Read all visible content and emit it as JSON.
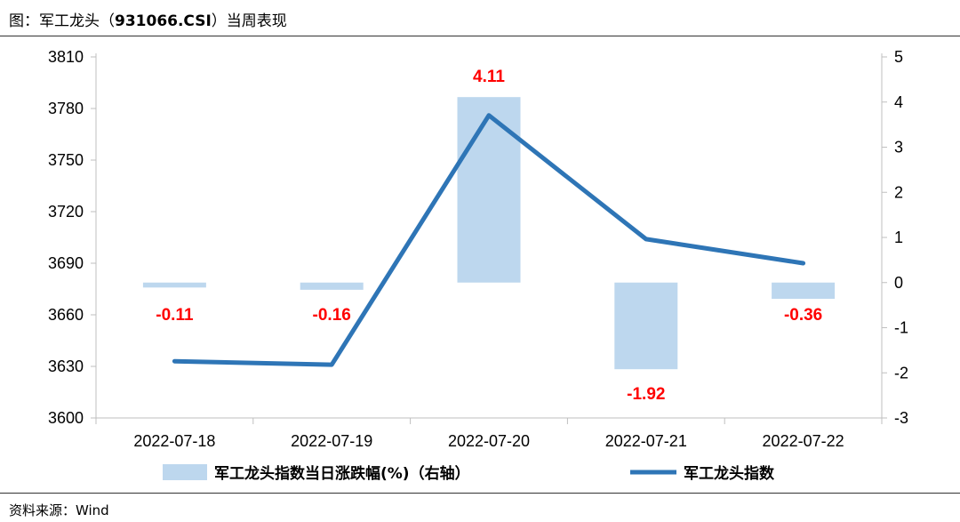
{
  "figure": {
    "title_prefix": "图：军工龙头（",
    "title_code": "931066.CSI",
    "title_suffix": "）当周表现",
    "source": "资料来源：Wind"
  },
  "colors": {
    "bar": "#bdd7ee",
    "line": "#2e75b6",
    "label": "#ff0000",
    "axis": "#bfbfbf"
  },
  "chart_data": {
    "type": "bar",
    "categories": [
      "2022-07-18",
      "2022-07-19",
      "2022-07-20",
      "2022-07-21",
      "2022-07-22"
    ],
    "series": [
      {
        "name": "军工龙头指数当日涨跌幅(%)（右轴）",
        "type": "bar",
        "axis": "right",
        "values": [
          -0.11,
          -0.16,
          4.11,
          -1.92,
          -0.36
        ],
        "labels": [
          "-0.11",
          "-0.16",
          "4.11",
          "-1.92",
          "-0.36"
        ]
      },
      {
        "name": "军工龙头指数",
        "type": "line",
        "axis": "left",
        "values": [
          3633,
          3631,
          3776,
          3704,
          3690
        ]
      }
    ],
    "y_left": {
      "min": 3600,
      "max": 3810,
      "ticks": [
        3810,
        3780,
        3750,
        3720,
        3690,
        3660,
        3630,
        3600
      ]
    },
    "y_right": {
      "min": -3,
      "max": 5,
      "ticks": [
        5,
        4,
        3,
        2,
        1,
        0,
        -1,
        -2,
        -3
      ]
    },
    "legend_position": "bottom",
    "grid": false
  }
}
